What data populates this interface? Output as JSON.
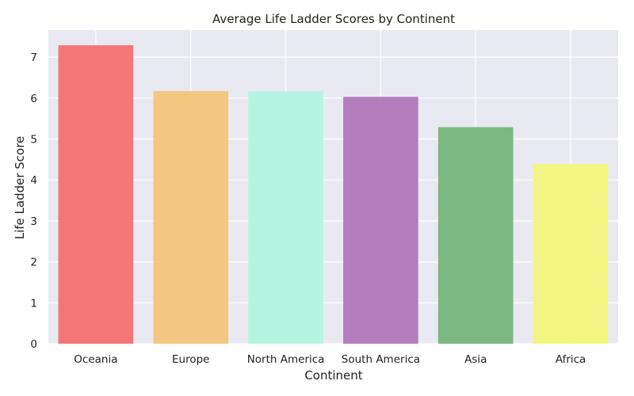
{
  "chart_data": {
    "type": "bar",
    "title": "Average Life Ladder Scores by Continent",
    "xlabel": "Continent",
    "ylabel": "Life Ladder Score",
    "categories": [
      "Oceania",
      "Europe",
      "North America",
      "South America",
      "Asia",
      "Africa"
    ],
    "values": [
      7.29,
      6.17,
      6.17,
      6.03,
      5.29,
      4.39
    ],
    "colors": [
      "#f47070",
      "#f2c57a",
      "#b3f4e0",
      "#b277b9",
      "#75b578",
      "#f2f57a"
    ],
    "ylim": [
      0,
      7.66
    ],
    "yticks": [
      0,
      1,
      2,
      3,
      4,
      5,
      6,
      7
    ],
    "grid": true,
    "background": "#e9e9f1",
    "gridColor": "#ffffff"
  }
}
